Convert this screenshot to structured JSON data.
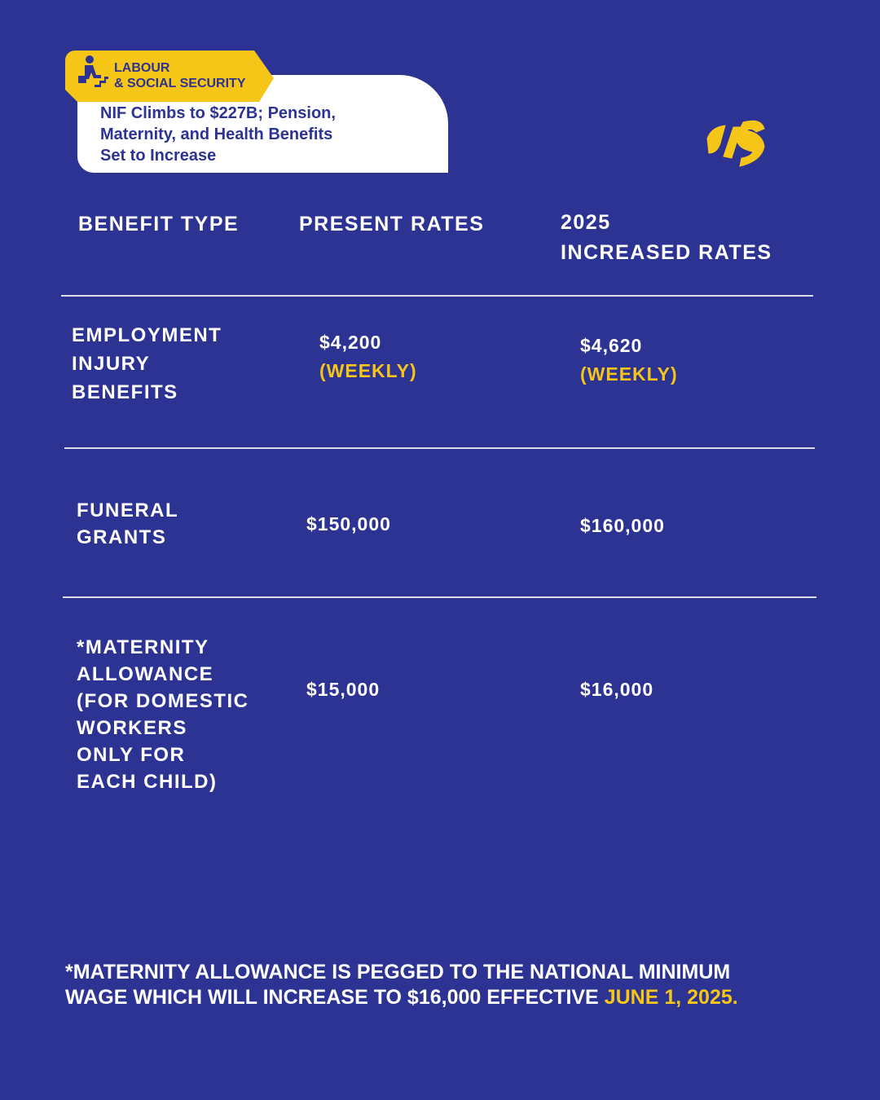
{
  "header": {
    "category": [
      "LABOUR",
      "& SOCIAL SECURITY"
    ],
    "headline": [
      "NIF Climbs to $227B; Pension,",
      "Maternity, and Health Benefits",
      "Set to Increase"
    ]
  },
  "table": {
    "columns": [
      [
        "BENEFIT TYPE"
      ],
      [
        "PRESENT RATES"
      ],
      [
        "2025",
        "INCREASED RATES"
      ]
    ],
    "rows": [
      {
        "type": [
          "EMPLOYMENT",
          "INJURY",
          "BENEFITS"
        ],
        "present": {
          "amount": "$4,200",
          "period": "(WEEKLY)"
        },
        "increased": {
          "amount": "$4,620",
          "period": "(WEEKLY)"
        }
      },
      {
        "type": [
          "FUNERAL",
          "GRANTS"
        ],
        "present": {
          "amount": "$150,000"
        },
        "increased": {
          "amount": "$160,000"
        }
      },
      {
        "type": [
          "*MATERNITY",
          "ALLOWANCE",
          "(FOR DOMESTIC",
          "WORKERS",
          "ONLY FOR",
          "EACH CHILD)"
        ],
        "present": {
          "amount": "$15,000"
        },
        "increased": {
          "amount": "$16,000"
        }
      }
    ]
  },
  "footnote": {
    "lines": [
      "*MATERNITY ALLOWANCE IS PEGGED TO THE NATIONAL MINIMUM",
      "WAGE WHICH WILL INCREASE TO $16,000 EFFECTIVE"
    ],
    "highlight": "JUNE 1, 2025."
  }
}
